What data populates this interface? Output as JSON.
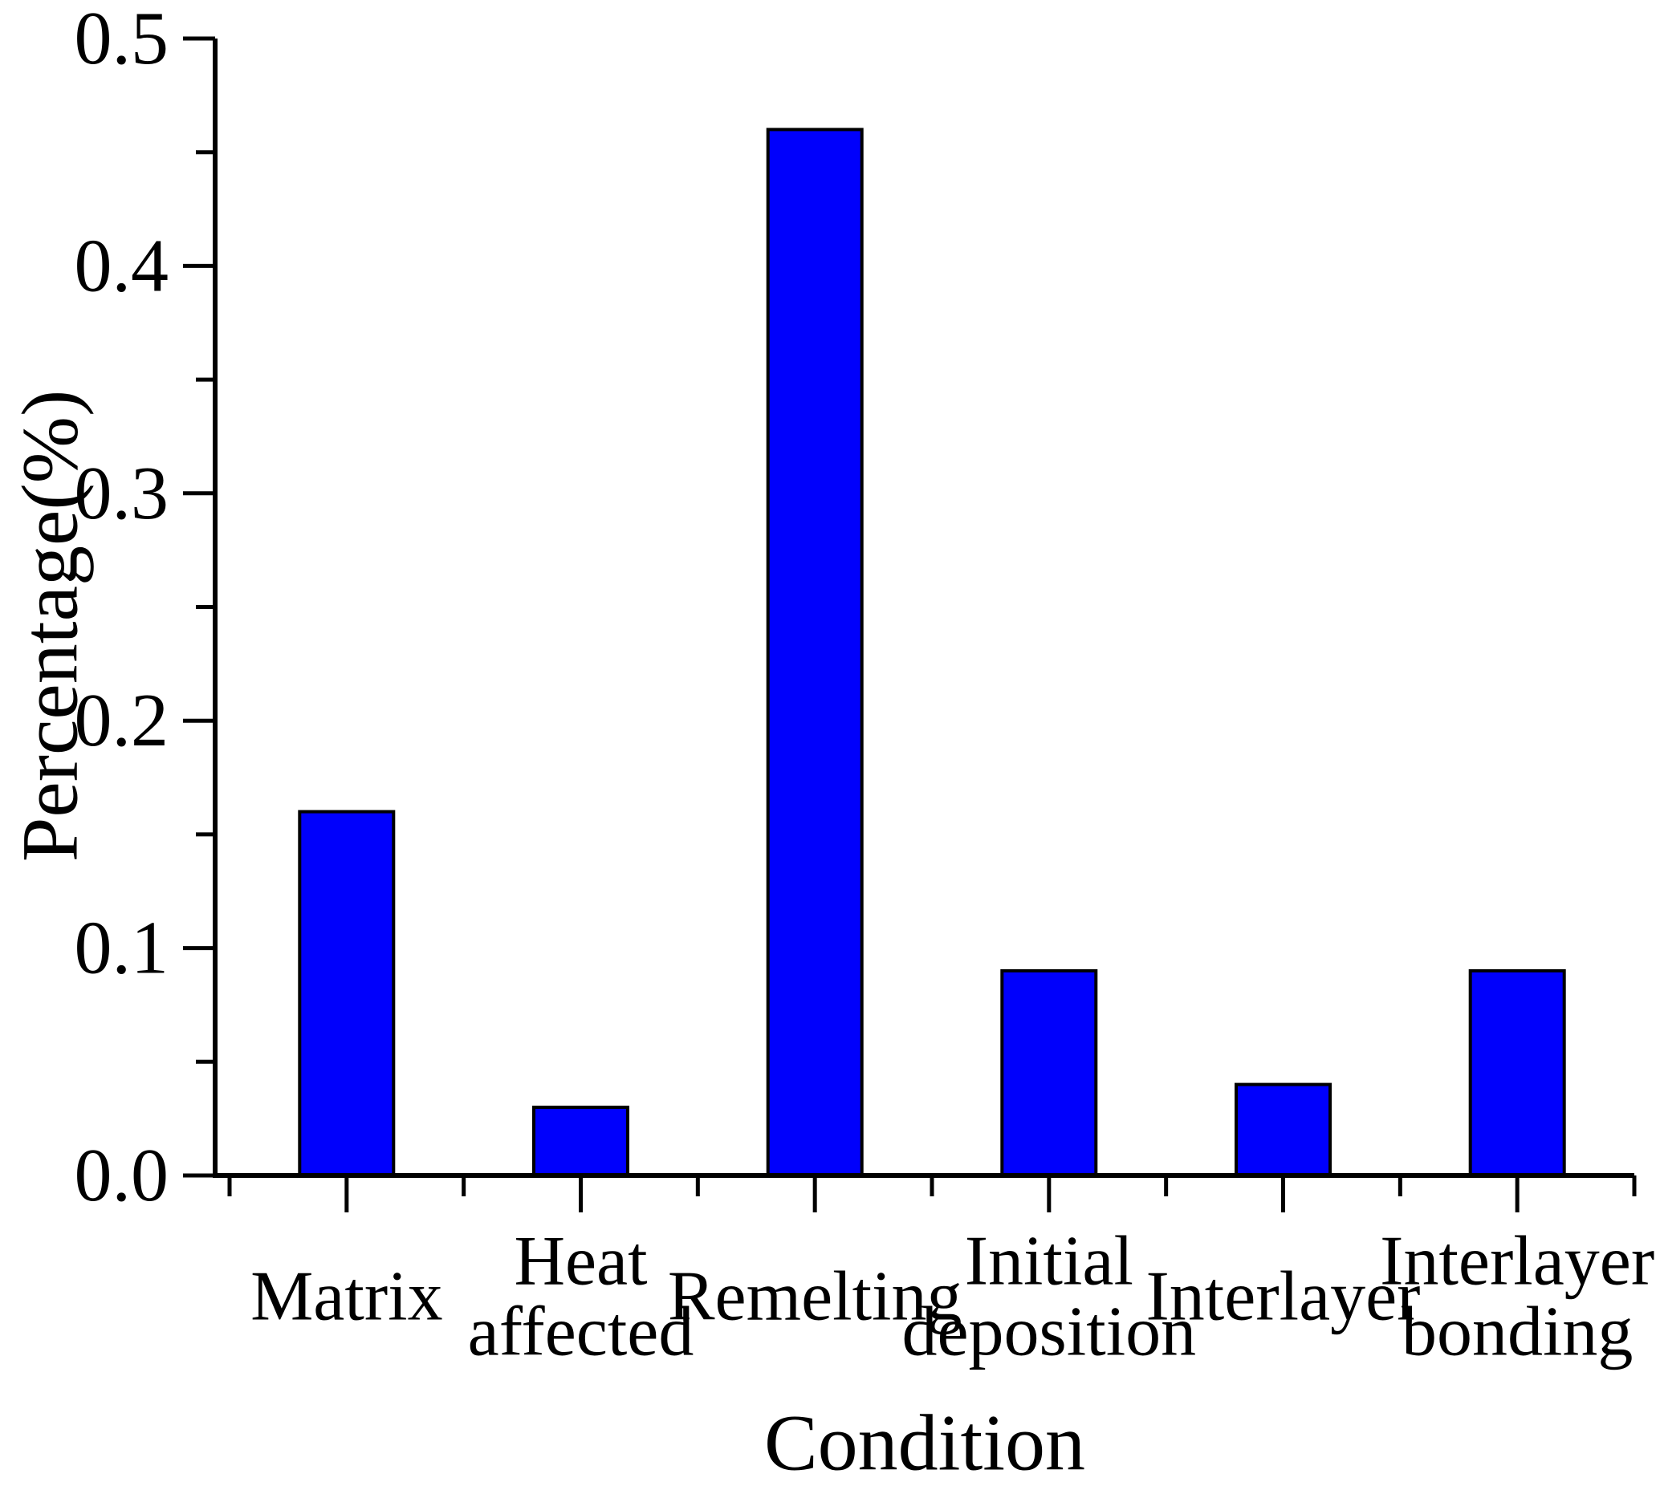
{
  "figure": {
    "background": "#ffffff"
  },
  "chart_data": {
    "type": "bar",
    "title": "",
    "xlabel": "Condition",
    "ylabel": "Percentage(%)",
    "categories": [
      [
        "Matrix"
      ],
      [
        "Heat",
        "affected"
      ],
      [
        "Remelting"
      ],
      [
        "Initial",
        "deposition"
      ],
      [
        "Interlayer"
      ],
      [
        "Interlayer",
        "bonding"
      ]
    ],
    "values": [
      0.16,
      0.03,
      0.46,
      0.09,
      0.04,
      0.09
    ],
    "ylim": [
      0.0,
      0.5
    ],
    "y_major_step": 0.1,
    "y_minor_step": 0.05,
    "y_tick_labels": [
      "0.0",
      "0.1",
      "0.2",
      "0.3",
      "0.4",
      "0.5"
    ],
    "grid": false,
    "legend": null,
    "bar_color": "#0000FC",
    "bar_edge_color": "#000000",
    "axis_color": "#000000",
    "text_color": "#000000"
  }
}
